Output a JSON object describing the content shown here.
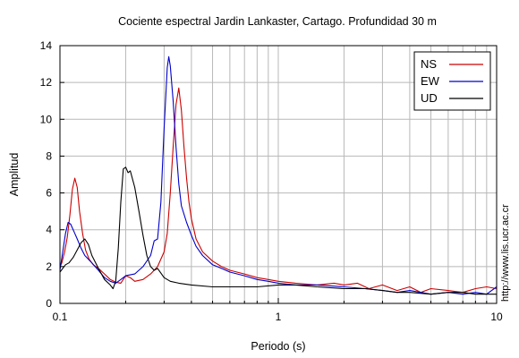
{
  "chart_data": {
    "type": "line",
    "title": "Cociente espectral Jardin Lankaster, Cartago. Profundidad 30 m",
    "xlabel": "Periodo (s)",
    "ylabel": "Amplitud",
    "xscale": "log",
    "xlim": [
      0.1,
      10
    ],
    "ylim": [
      0,
      14
    ],
    "xticks": [
      0.1,
      1,
      10
    ],
    "xtick_labels": [
      "0.1",
      "1",
      "10"
    ],
    "yticks": [
      0,
      2,
      4,
      6,
      8,
      10,
      12,
      14
    ],
    "ytick_labels": [
      "0",
      "2",
      "4",
      "6",
      "8",
      "10",
      "12",
      "14"
    ],
    "grid": true,
    "legend_position": "top-right",
    "watermark": "http://www.lis.ucr.ac.cr",
    "series": [
      {
        "name": "NS",
        "color": "#cc0000",
        "points": [
          [
            0.1,
            2.0
          ],
          [
            0.102,
            2.2
          ],
          [
            0.105,
            2.8
          ],
          [
            0.108,
            3.6
          ],
          [
            0.111,
            4.8
          ],
          [
            0.114,
            6.2
          ],
          [
            0.117,
            6.8
          ],
          [
            0.12,
            6.3
          ],
          [
            0.123,
            5.0
          ],
          [
            0.127,
            3.8
          ],
          [
            0.131,
            2.9
          ],
          [
            0.136,
            2.4
          ],
          [
            0.142,
            2.1
          ],
          [
            0.15,
            1.9
          ],
          [
            0.16,
            1.6
          ],
          [
            0.17,
            1.3
          ],
          [
            0.18,
            1.15
          ],
          [
            0.19,
            1.1
          ],
          [
            0.2,
            1.5
          ],
          [
            0.21,
            1.4
          ],
          [
            0.22,
            1.2
          ],
          [
            0.24,
            1.3
          ],
          [
            0.26,
            1.6
          ],
          [
            0.28,
            2.0
          ],
          [
            0.3,
            2.8
          ],
          [
            0.31,
            3.8
          ],
          [
            0.32,
            6.0
          ],
          [
            0.33,
            8.5
          ],
          [
            0.34,
            10.8
          ],
          [
            0.35,
            11.7
          ],
          [
            0.36,
            10.5
          ],
          [
            0.37,
            8.5
          ],
          [
            0.38,
            6.8
          ],
          [
            0.39,
            5.5
          ],
          [
            0.4,
            4.6
          ],
          [
            0.42,
            3.5
          ],
          [
            0.45,
            2.8
          ],
          [
            0.5,
            2.3
          ],
          [
            0.55,
            2.0
          ],
          [
            0.6,
            1.8
          ],
          [
            0.7,
            1.6
          ],
          [
            0.8,
            1.4
          ],
          [
            0.9,
            1.3
          ],
          [
            1.0,
            1.2
          ],
          [
            1.2,
            1.1
          ],
          [
            1.5,
            1.0
          ],
          [
            1.8,
            1.1
          ],
          [
            2.0,
            1.0
          ],
          [
            2.3,
            1.1
          ],
          [
            2.6,
            0.8
          ],
          [
            3.0,
            1.0
          ],
          [
            3.5,
            0.7
          ],
          [
            4.0,
            0.9
          ],
          [
            4.5,
            0.6
          ],
          [
            5.0,
            0.8
          ],
          [
            6.0,
            0.7
          ],
          [
            7.0,
            0.6
          ],
          [
            8.0,
            0.8
          ],
          [
            9.0,
            0.9
          ],
          [
            10,
            0.8
          ]
        ]
      },
      {
        "name": "EW",
        "color": "#0000cc",
        "points": [
          [
            0.1,
            1.8
          ],
          [
            0.103,
            2.8
          ],
          [
            0.106,
            3.8
          ],
          [
            0.109,
            4.4
          ],
          [
            0.112,
            4.3
          ],
          [
            0.116,
            3.9
          ],
          [
            0.12,
            3.5
          ],
          [
            0.125,
            3.0
          ],
          [
            0.13,
            2.6
          ],
          [
            0.14,
            2.2
          ],
          [
            0.15,
            1.8
          ],
          [
            0.16,
            1.4
          ],
          [
            0.17,
            1.2
          ],
          [
            0.18,
            1.1
          ],
          [
            0.19,
            1.3
          ],
          [
            0.2,
            1.5
          ],
          [
            0.22,
            1.6
          ],
          [
            0.24,
            2.0
          ],
          [
            0.26,
            2.6
          ],
          [
            0.27,
            3.4
          ],
          [
            0.28,
            3.5
          ],
          [
            0.29,
            5.5
          ],
          [
            0.3,
            9.5
          ],
          [
            0.31,
            12.8
          ],
          [
            0.315,
            13.4
          ],
          [
            0.32,
            12.9
          ],
          [
            0.33,
            11.0
          ],
          [
            0.34,
            8.5
          ],
          [
            0.35,
            6.5
          ],
          [
            0.36,
            5.3
          ],
          [
            0.38,
            4.4
          ],
          [
            0.4,
            3.7
          ],
          [
            0.42,
            3.1
          ],
          [
            0.45,
            2.6
          ],
          [
            0.5,
            2.1
          ],
          [
            0.55,
            1.9
          ],
          [
            0.6,
            1.7
          ],
          [
            0.7,
            1.5
          ],
          [
            0.8,
            1.3
          ],
          [
            0.9,
            1.2
          ],
          [
            1.0,
            1.1
          ],
          [
            1.2,
            1.0
          ],
          [
            1.5,
            1.0
          ],
          [
            2.0,
            0.9
          ],
          [
            2.5,
            0.8
          ],
          [
            3.0,
            0.7
          ],
          [
            3.5,
            0.6
          ],
          [
            4.0,
            0.7
          ],
          [
            5.0,
            0.5
          ],
          [
            6.0,
            0.6
          ],
          [
            7.0,
            0.5
          ],
          [
            8.0,
            0.6
          ],
          [
            9.0,
            0.5
          ],
          [
            10,
            0.9
          ]
        ]
      },
      {
        "name": "UD",
        "color": "#000000",
        "points": [
          [
            0.1,
            1.7
          ],
          [
            0.103,
            1.9
          ],
          [
            0.106,
            2.1
          ],
          [
            0.11,
            2.2
          ],
          [
            0.115,
            2.5
          ],
          [
            0.12,
            2.9
          ],
          [
            0.125,
            3.3
          ],
          [
            0.13,
            3.5
          ],
          [
            0.135,
            3.2
          ],
          [
            0.14,
            2.6
          ],
          [
            0.15,
            1.9
          ],
          [
            0.16,
            1.3
          ],
          [
            0.17,
            1.0
          ],
          [
            0.175,
            0.8
          ],
          [
            0.18,
            1.2
          ],
          [
            0.185,
            3.0
          ],
          [
            0.19,
            5.5
          ],
          [
            0.195,
            7.3
          ],
          [
            0.2,
            7.4
          ],
          [
            0.205,
            7.1
          ],
          [
            0.21,
            7.2
          ],
          [
            0.22,
            6.3
          ],
          [
            0.23,
            5.0
          ],
          [
            0.24,
            3.7
          ],
          [
            0.25,
            2.6
          ],
          [
            0.26,
            2.0
          ],
          [
            0.27,
            1.8
          ],
          [
            0.28,
            1.9
          ],
          [
            0.3,
            1.4
          ],
          [
            0.32,
            1.2
          ],
          [
            0.35,
            1.1
          ],
          [
            0.4,
            1.0
          ],
          [
            0.5,
            0.9
          ],
          [
            0.6,
            0.9
          ],
          [
            0.8,
            0.9
          ],
          [
            1.0,
            1.0
          ],
          [
            1.2,
            1.0
          ],
          [
            1.5,
            0.9
          ],
          [
            2.0,
            0.8
          ],
          [
            2.5,
            0.8
          ],
          [
            3.0,
            0.7
          ],
          [
            3.5,
            0.6
          ],
          [
            4.0,
            0.6
          ],
          [
            5.0,
            0.5
          ],
          [
            6.0,
            0.6
          ],
          [
            7.0,
            0.6
          ],
          [
            8.0,
            0.5
          ],
          [
            9.0,
            0.5
          ],
          [
            10,
            0.5
          ]
        ]
      }
    ]
  }
}
